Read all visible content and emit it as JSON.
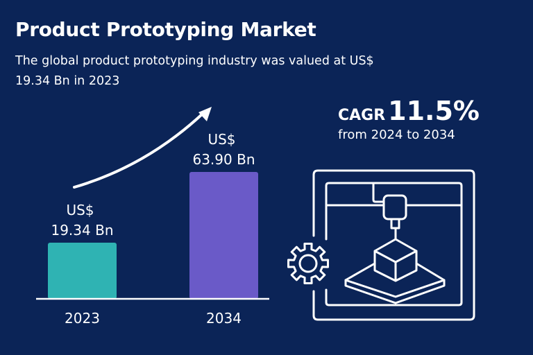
{
  "header": {
    "title": "Product Prototyping Market",
    "subtitle": "The global product prototyping industry was valued at US$ 19.34 Bn in 2023"
  },
  "cagr": {
    "label": "CAGR",
    "value": "11.5%",
    "period": "from 2024 to 2034"
  },
  "icons": [
    "growth-arrow-icon",
    "3d-printer-icon",
    "gear-icon"
  ],
  "chart_data": {
    "type": "bar",
    "categories": [
      "2023",
      "2034"
    ],
    "values": [
      19.34,
      63.9
    ],
    "unit": "US$ Bn",
    "data_labels": [
      [
        "US$",
        "19.34 Bn"
      ],
      [
        "US$",
        "63.90 Bn"
      ]
    ],
    "colors": [
      "#2fb3b3",
      "#6a5ac8"
    ],
    "grid": false,
    "title": "",
    "xlabel": "",
    "ylabel": ""
  }
}
